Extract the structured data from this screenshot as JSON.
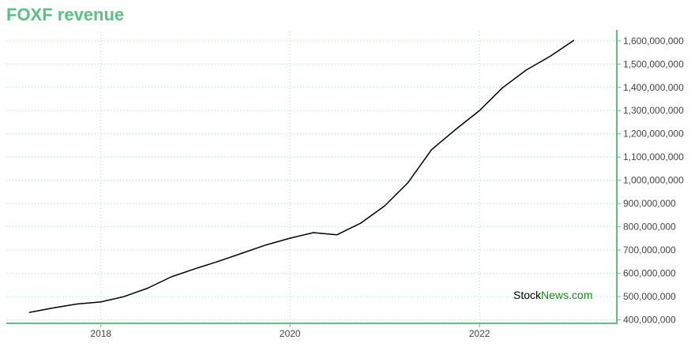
{
  "title": "FOXF revenue",
  "watermark": {
    "part1": "Stock",
    "part2": "News",
    "part3": ".com"
  },
  "colors": {
    "title": "#5cbf84",
    "axis": "#5cbf84",
    "grid": "#a9ddc0",
    "line": "#000000",
    "wm_dark": "#000000",
    "wm_green": "#1a8a1a"
  },
  "chart_data": {
    "type": "line",
    "title": "FOXF revenue",
    "xlabel": "",
    "ylabel": "",
    "x_ticks": [
      "2018",
      "2020",
      "2022"
    ],
    "y_ticks": [
      "400,000,000",
      "500,000,000",
      "600,000,000",
      "700,000,000",
      "800,000,000",
      "900,000,000",
      "1,000,000,000",
      "1,100,000,000",
      "1,200,000,000",
      "1,300,000,000",
      "1,400,000,000",
      "1,500,000,000",
      "1,600,000,000"
    ],
    "ylim": [
      385000000,
      1640000000
    ],
    "xlim": [
      "2017-01-01",
      "2023-06-15"
    ],
    "grid": true,
    "y_axis_side": "right",
    "series": [
      {
        "x": [
          "2017-03-31",
          "2017-06-30",
          "2017-09-30",
          "2017-12-31",
          "2018-03-31",
          "2018-06-30",
          "2018-09-30",
          "2018-12-31",
          "2019-03-31",
          "2019-06-30",
          "2019-09-30",
          "2019-12-31",
          "2020-03-31",
          "2020-06-30",
          "2020-09-30",
          "2020-12-31",
          "2021-03-31",
          "2021-06-30",
          "2021-09-30",
          "2021-12-31",
          "2022-03-31",
          "2022-06-30",
          "2022-09-30",
          "2022-12-31"
        ],
        "values": [
          432000000,
          451000000,
          468000000,
          477000000,
          500000000,
          536000000,
          585000000,
          620000000,
          652000000,
          687000000,
          722000000,
          751000000,
          775000000,
          766000000,
          816000000,
          890000000,
          990000000,
          1132000000,
          1218000000,
          1299000000,
          1398000000,
          1474000000,
          1533000000,
          1602000000
        ]
      }
    ]
  }
}
